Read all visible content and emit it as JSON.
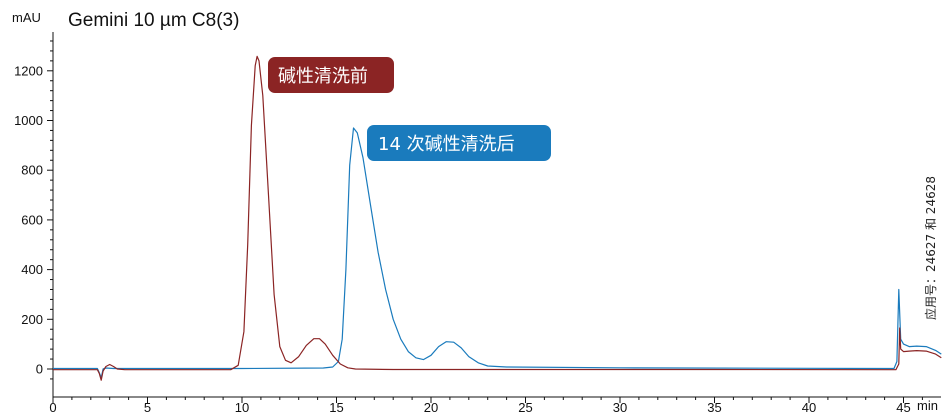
{
  "chart_data": {
    "type": "line",
    "title": "Gemini 10 µm C8(3)",
    "ylabel": "mAU",
    "xlabel": "min",
    "xlim": [
      0,
      47
    ],
    "ylim": [
      -60,
      1340
    ],
    "x_ticks": [
      0,
      5,
      10,
      15,
      20,
      25,
      30,
      35,
      40,
      45
    ],
    "y_ticks": [
      0,
      200,
      400,
      600,
      800,
      1000,
      1200
    ],
    "grid": false,
    "series": [
      {
        "name": "碱性清洗前",
        "color": "#8b2424",
        "points": [
          [
            0,
            -3
          ],
          [
            2.35,
            -3
          ],
          [
            2.45,
            -18
          ],
          [
            2.55,
            -45
          ],
          [
            2.65,
            -8
          ],
          [
            2.8,
            10
          ],
          [
            3.0,
            18
          ],
          [
            3.2,
            10
          ],
          [
            3.4,
            0
          ],
          [
            3.8,
            -3
          ],
          [
            9.4,
            -3
          ],
          [
            9.8,
            15
          ],
          [
            10.1,
            150
          ],
          [
            10.3,
            500
          ],
          [
            10.5,
            980
          ],
          [
            10.7,
            1220
          ],
          [
            10.8,
            1258
          ],
          [
            10.9,
            1240
          ],
          [
            11.1,
            1100
          ],
          [
            11.4,
            700
          ],
          [
            11.7,
            300
          ],
          [
            12.0,
            90
          ],
          [
            12.3,
            35
          ],
          [
            12.6,
            25
          ],
          [
            13.0,
            50
          ],
          [
            13.4,
            95
          ],
          [
            13.8,
            122
          ],
          [
            14.1,
            122
          ],
          [
            14.4,
            100
          ],
          [
            14.8,
            55
          ],
          [
            15.2,
            20
          ],
          [
            15.6,
            5
          ],
          [
            16.0,
            0
          ],
          [
            18.0,
            -2
          ],
          [
            25,
            -2
          ],
          [
            35,
            -2
          ],
          [
            44.6,
            -3
          ],
          [
            44.75,
            20
          ],
          [
            44.8,
            165
          ],
          [
            44.85,
            80
          ],
          [
            45.0,
            70
          ],
          [
            45.3,
            72
          ],
          [
            45.7,
            74
          ],
          [
            46.2,
            72
          ],
          [
            46.7,
            60
          ],
          [
            47,
            45
          ]
        ]
      },
      {
        "name": "14 次碱性清洗后",
        "color": "#1a7bbd",
        "points": [
          [
            0,
            2
          ],
          [
            2.35,
            2
          ],
          [
            2.45,
            -15
          ],
          [
            2.55,
            -35
          ],
          [
            2.65,
            0
          ],
          [
            2.8,
            4
          ],
          [
            3.2,
            2
          ],
          [
            3.6,
            2
          ],
          [
            10,
            2
          ],
          [
            14.3,
            4
          ],
          [
            14.8,
            8
          ],
          [
            15.1,
            30
          ],
          [
            15.3,
            120
          ],
          [
            15.5,
            400
          ],
          [
            15.7,
            820
          ],
          [
            15.9,
            970
          ],
          [
            16.1,
            950
          ],
          [
            16.4,
            850
          ],
          [
            16.8,
            660
          ],
          [
            17.2,
            470
          ],
          [
            17.6,
            320
          ],
          [
            18.0,
            200
          ],
          [
            18.4,
            120
          ],
          [
            18.8,
            70
          ],
          [
            19.2,
            45
          ],
          [
            19.6,
            38
          ],
          [
            20.0,
            55
          ],
          [
            20.4,
            90
          ],
          [
            20.8,
            110
          ],
          [
            21.2,
            108
          ],
          [
            21.6,
            85
          ],
          [
            22.0,
            50
          ],
          [
            22.5,
            25
          ],
          [
            23.0,
            12
          ],
          [
            24.0,
            8
          ],
          [
            30,
            5
          ],
          [
            40,
            3
          ],
          [
            44.5,
            2
          ],
          [
            44.65,
            30
          ],
          [
            44.75,
            320
          ],
          [
            44.85,
            120
          ],
          [
            45.0,
            100
          ],
          [
            45.3,
            90
          ],
          [
            45.7,
            92
          ],
          [
            46.2,
            90
          ],
          [
            46.7,
            75
          ],
          [
            47,
            60
          ]
        ]
      }
    ],
    "annotations": [
      {
        "text": "碱性清洗前",
        "color": "#8b2424"
      },
      {
        "text": "14 次碱性清洗后",
        "color": "#1a7bbd"
      }
    ],
    "side_note": "应用号：24627 和 24628"
  }
}
